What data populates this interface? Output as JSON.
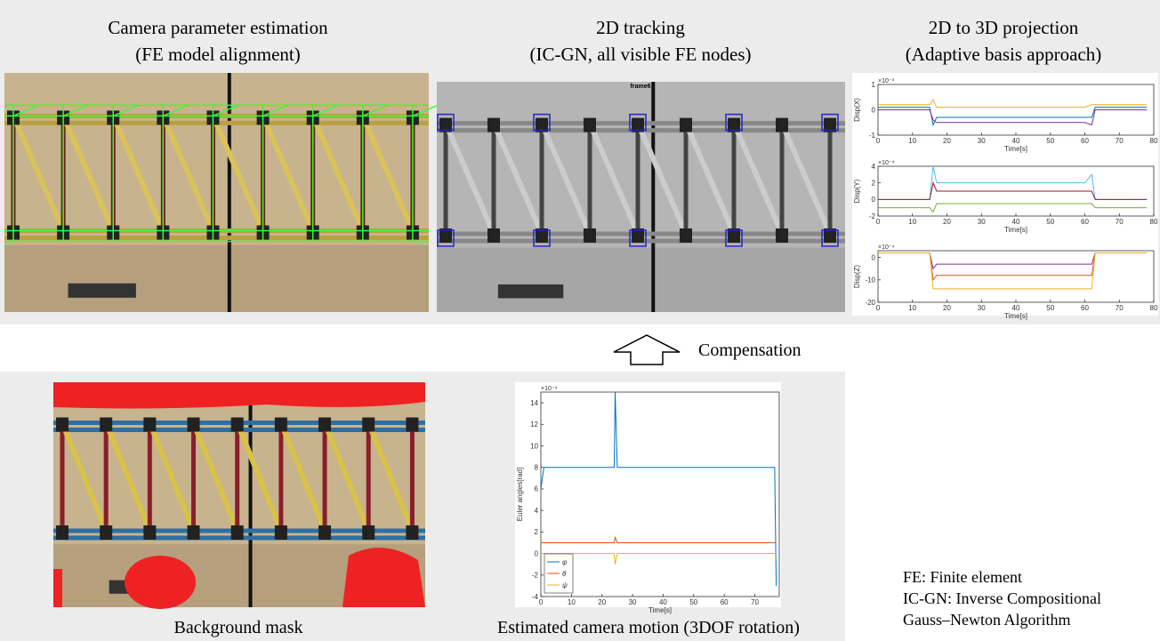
{
  "panels": {
    "camera": {
      "title": [
        "Camera parameter estimation",
        "(FE model alignment)"
      ]
    },
    "tracking": {
      "title": [
        "2D tracking",
        "(IC-GN, all visible FE nodes)"
      ],
      "frame_label": "frame6"
    },
    "projection": {
      "title": [
        "2D to 3D projection",
        "(Adaptive basis approach)"
      ],
      "charts": [
        {
          "type": "line",
          "ylabel": "Disp(X)",
          "xlabel": "Time[s]",
          "exponent": "×10⁻³",
          "xlim": [
            0,
            80
          ],
          "ylim": [
            -1,
            1
          ],
          "xticks": [
            0,
            10,
            20,
            30,
            40,
            50,
            60,
            70,
            80
          ],
          "yticks": [
            -1,
            0,
            1
          ],
          "x": [
            0,
            15,
            16,
            17,
            24,
            25,
            60,
            62,
            63,
            78
          ],
          "series": [
            {
              "color": "#0072bd",
              "values": [
                0.1,
                0.1,
                -0.6,
                -0.3,
                -0.3,
                -0.3,
                -0.3,
                -0.3,
                0.1,
                0.1
              ]
            },
            {
              "color": "#edb120",
              "values": [
                0.2,
                0.2,
                0.4,
                0.1,
                0.1,
                0.1,
                0.1,
                0.2,
                0.2,
                0.2
              ]
            },
            {
              "color": "#7e2f8e",
              "values": [
                0,
                0,
                -0.4,
                -0.5,
                -0.5,
                -0.5,
                -0.5,
                -0.6,
                0,
                0
              ]
            }
          ]
        },
        {
          "type": "line",
          "ylabel": "Disp(Y)",
          "xlabel": "Time[s]",
          "exponent": "×10⁻⁴",
          "xlim": [
            0,
            80
          ],
          "ylim": [
            -2,
            4
          ],
          "xticks": [
            0,
            10,
            20,
            30,
            40,
            50,
            60,
            70,
            80
          ],
          "yticks": [
            -2,
            0,
            2,
            4
          ],
          "x": [
            0,
            15,
            16,
            17,
            24,
            25,
            60,
            62,
            63,
            78
          ],
          "series": [
            {
              "color": "#4dbeee",
              "values": [
                0,
                0,
                4,
                2,
                2,
                2,
                2,
                3,
                0,
                0
              ]
            },
            {
              "color": "#a2142f",
              "values": [
                0,
                0,
                2,
                1,
                1,
                1,
                1,
                1,
                0,
                0
              ]
            },
            {
              "color": "#77ac30",
              "values": [
                -1,
                -1,
                -1.5,
                -0.5,
                -0.5,
                -0.5,
                -0.5,
                -0.5,
                -1,
                -1
              ]
            }
          ]
        },
        {
          "type": "line",
          "ylabel": "Disp(Z)",
          "xlabel": "Time[s]",
          "exponent": "×10⁻⁴",
          "xlim": [
            0,
            80
          ],
          "ylim": [
            -20,
            3
          ],
          "xticks": [
            0,
            10,
            20,
            30,
            40,
            50,
            60,
            70,
            80
          ],
          "yticks": [
            -20,
            -10,
            0
          ],
          "x": [
            0,
            15,
            16,
            17,
            24,
            25,
            60,
            62,
            63,
            78
          ],
          "series": [
            {
              "color": "#7e2f8e",
              "values": [
                2,
                2,
                -5,
                -3,
                -3,
                -3,
                -3,
                -3,
                2,
                2
              ]
            },
            {
              "color": "#d95319",
              "values": [
                2,
                2,
                -10,
                -8,
                -8,
                -8,
                -8,
                -8,
                2,
                2
              ]
            },
            {
              "color": "#edb120",
              "values": [
                2,
                2,
                -14,
                -14,
                -14,
                -14,
                -14,
                -14,
                2,
                2
              ]
            }
          ]
        }
      ]
    },
    "compensation": "Compensation",
    "mask": {
      "caption": "Background mask"
    },
    "motion": {
      "caption": "Estimated camera motion (3DOF rotation)",
      "chart": {
        "type": "line",
        "ylabel": "Euler angles[rad]",
        "xlabel": "Time[s]",
        "exponent": "×10⁻⁴",
        "xlim": [
          0,
          78
        ],
        "ylim": [
          -4,
          15
        ],
        "xticks": [
          0,
          10,
          20,
          30,
          40,
          50,
          60,
          70
        ],
        "yticks": [
          -4,
          -2,
          0,
          2,
          4,
          6,
          8,
          10,
          12,
          14
        ],
        "x": [
          0,
          1,
          2,
          24,
          24.3,
          25,
          76,
          76.5,
          77
        ],
        "series": [
          {
            "name": "φ",
            "color": "#0072bd",
            "values": [
              6,
              8,
              8,
              8,
              15,
              8,
              8,
              8,
              -3
            ]
          },
          {
            "name": "θ",
            "color": "#d95319",
            "values": [
              1,
              1,
              1,
              1,
              1.5,
              1,
              1,
              1,
              1
            ]
          },
          {
            "name": "ψ",
            "color": "#edb120",
            "values": [
              0,
              0,
              0,
              0,
              -1,
              0,
              0,
              0,
              0
            ]
          }
        ]
      }
    }
  },
  "notes": [
    "FE: Finite element",
    "IC-GN: Inverse Compositional",
    "Gauss–Newton Algorithm"
  ]
}
